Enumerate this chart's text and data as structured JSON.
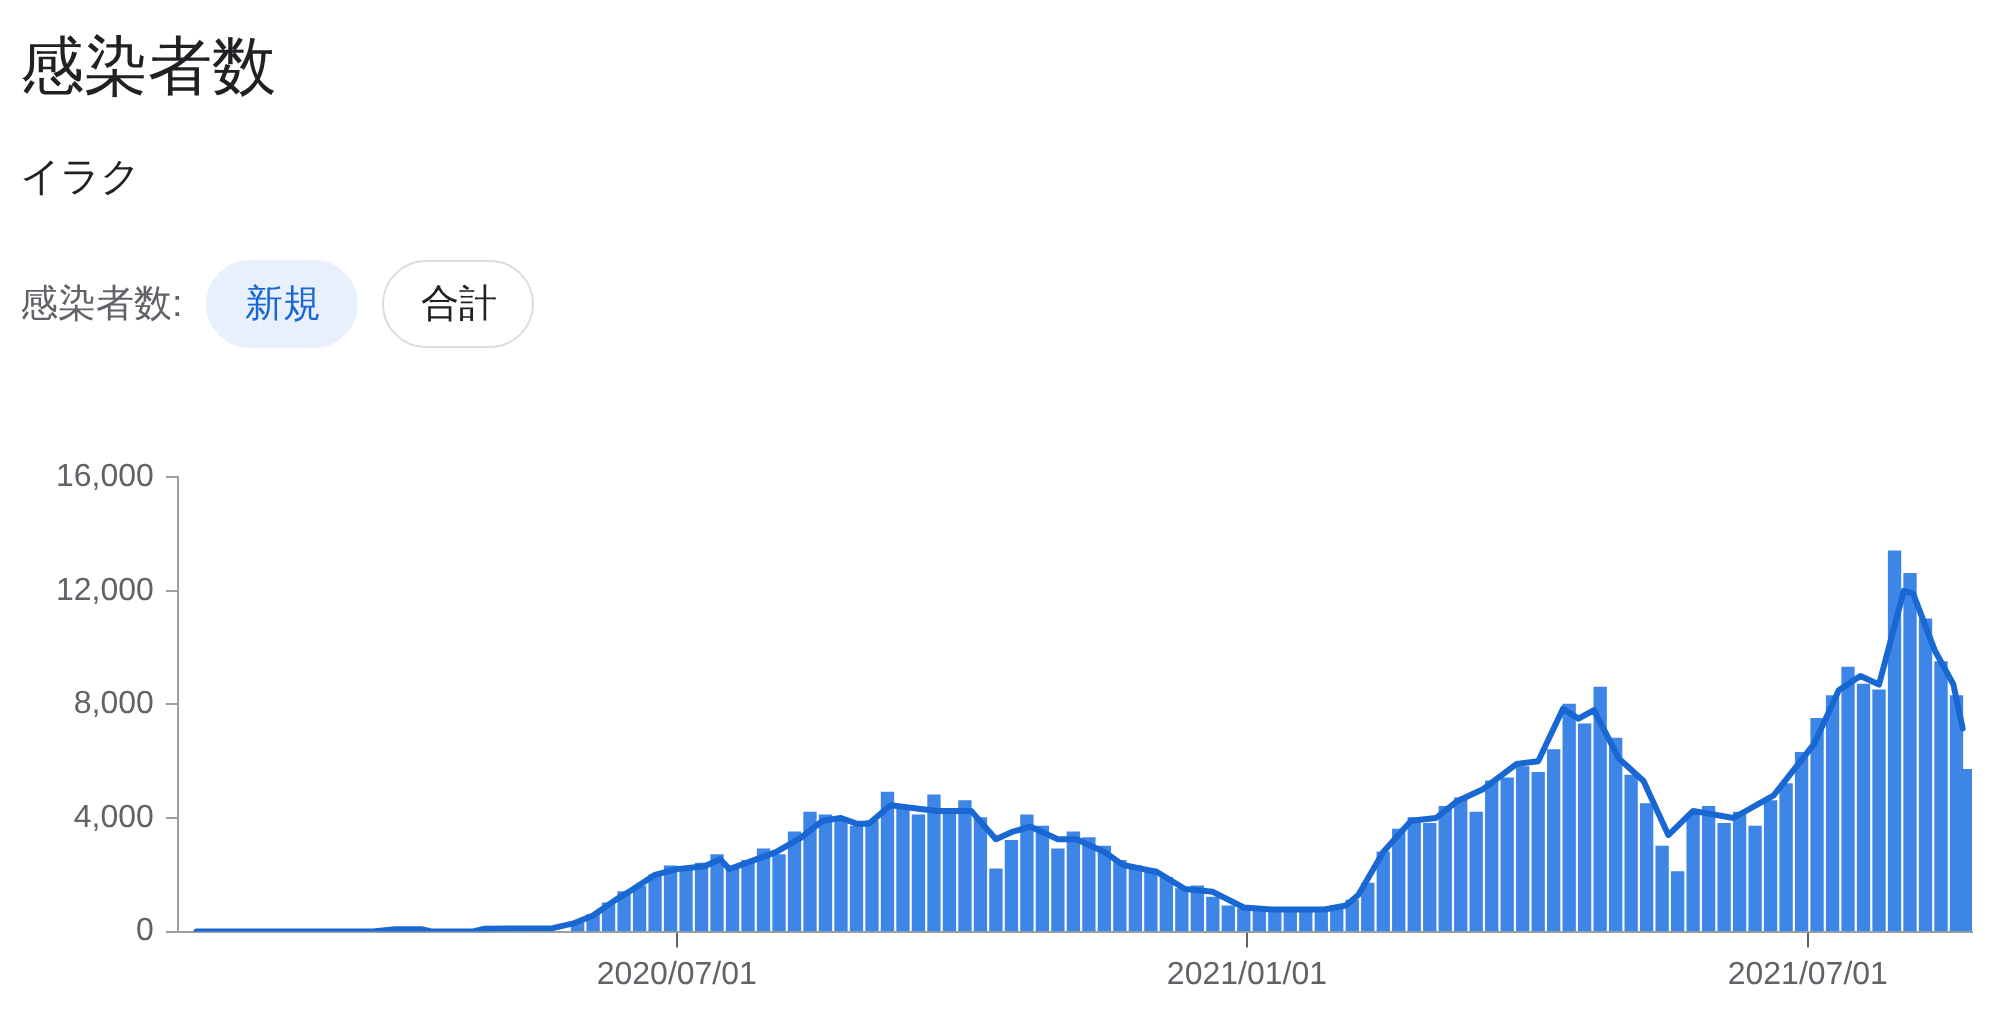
{
  "chart_data": {
    "type": "bar",
    "title": "感染者数",
    "subtitle": "イラク",
    "annotations": [
      "感染者数:",
      "新規",
      "合計"
    ],
    "xlim": [
      "2020-01-22",
      "2021-08-23"
    ],
    "xticks": [
      {
        "value": "2020-07-01",
        "label": "2020/07/01"
      },
      {
        "value": "2021-01-01",
        "label": "2021/01/01"
      },
      {
        "value": "2021-07-01",
        "label": "2021/07/01"
      }
    ],
    "ylim": [
      0,
      16000
    ],
    "yticks": [
      0,
      {
        "value": 4000,
        "label": "4,000"
      },
      {
        "value": 8000,
        "label": "8,000"
      },
      {
        "value": 12000,
        "label": "12,000"
      },
      {
        "value": 16000,
        "label": "16,000"
      }
    ],
    "series": [
      {
        "color": "#3d85e6",
        "x": [
          "2020-05-30",
          "2020-06-04",
          "2020-06-09",
          "2020-06-14",
          "2020-06-19",
          "2020-06-24",
          "2020-06-29",
          "2020-07-04",
          "2020-07-09",
          "2020-07-14",
          "2020-07-19",
          "2020-07-24",
          "2020-07-29",
          "2020-08-03",
          "2020-08-08",
          "2020-08-13",
          "2020-08-18",
          "2020-08-23",
          "2020-08-28",
          "2020-09-02",
          "2020-09-07",
          "2020-09-12",
          "2020-09-17",
          "2020-09-22",
          "2020-09-27",
          "2020-10-02",
          "2020-10-07",
          "2020-10-12",
          "2020-10-17",
          "2020-10-22",
          "2020-10-27",
          "2020-11-01",
          "2020-11-06",
          "2020-11-11",
          "2020-11-16",
          "2020-11-21",
          "2020-11-26",
          "2020-12-01",
          "2020-12-06",
          "2020-12-11",
          "2020-12-16",
          "2020-12-21",
          "2020-12-26",
          "2020-12-31",
          "2021-01-05",
          "2021-01-10",
          "2021-01-15",
          "2021-01-20",
          "2021-01-25",
          "2021-01-30",
          "2021-02-04",
          "2021-02-09",
          "2021-02-14",
          "2021-02-19",
          "2021-02-24",
          "2021-03-01",
          "2021-03-06",
          "2021-03-11",
          "2021-03-16",
          "2021-03-21",
          "2021-03-26",
          "2021-03-31",
          "2021-04-05",
          "2021-04-10",
          "2021-04-15",
          "2021-04-20",
          "2021-04-25",
          "2021-04-30",
          "2021-05-05",
          "2021-05-10",
          "2021-05-15",
          "2021-05-20",
          "2021-05-25",
          "2021-05-30",
          "2021-06-04",
          "2021-06-09",
          "2021-06-14",
          "2021-06-19",
          "2021-06-24",
          "2021-06-29",
          "2021-07-04",
          "2021-07-09",
          "2021-07-14",
          "2021-07-19",
          "2021-07-24",
          "2021-07-29",
          "2021-08-03",
          "2021-08-08",
          "2021-08-13",
          "2021-08-18",
          "2021-08-22"
        ],
        "values": [
          300,
          600,
          1000,
          1400,
          1600,
          2000,
          2300,
          2200,
          2400,
          2700,
          2200,
          2500,
          2900,
          2700,
          3500,
          4200,
          4100,
          4000,
          3700,
          3900,
          4900,
          4300,
          4100,
          4800,
          4300,
          4600,
          4000,
          2200,
          3200,
          4100,
          3700,
          2900,
          3500,
          3300,
          3000,
          2500,
          2300,
          2200,
          1900,
          1500,
          1600,
          1200,
          900,
          800,
          850,
          700,
          750,
          800,
          700,
          900,
          1100,
          1700,
          2800,
          3600,
          4000,
          3800,
          4400,
          4700,
          4200,
          5300,
          5400,
          5800,
          5600,
          6400,
          8000,
          7300,
          8600,
          6800,
          5500,
          4500,
          3000,
          2100,
          4100,
          4400,
          3800,
          4200,
          3700,
          4600,
          5200,
          6300,
          7500,
          8300,
          9300,
          8700,
          8500,
          13400,
          12600,
          11000,
          9500,
          8300,
          5700
        ]
      },
      {
        "type": "line",
        "color": "#1967d2",
        "x": [
          "2020-01-28",
          "2020-03-25",
          "2020-04-01",
          "2020-04-10",
          "2020-04-13",
          "2020-04-26",
          "2020-04-30",
          "2020-05-22",
          "2020-05-29",
          "2020-06-04",
          "2020-06-11",
          "2020-06-17",
          "2020-06-24",
          "2020-07-01",
          "2020-07-10",
          "2020-07-15",
          "2020-07-18",
          "2020-08-02",
          "2020-08-10",
          "2020-08-17",
          "2020-08-23",
          "2020-08-28",
          "2020-09-01",
          "2020-09-08",
          "2020-09-23",
          "2020-10-04",
          "2020-10-12",
          "2020-10-17",
          "2020-10-23",
          "2020-11-01",
          "2020-11-07",
          "2020-11-16",
          "2020-11-22",
          "2020-12-03",
          "2020-12-12",
          "2020-12-21",
          "2020-12-31",
          "2021-01-09",
          "2021-01-26",
          "2021-02-02",
          "2021-02-06",
          "2021-02-14",
          "2021-02-23",
          "2021-03-03",
          "2021-03-10",
          "2021-03-18",
          "2021-03-29",
          "2021-04-05",
          "2021-04-13",
          "2021-04-18",
          "2021-04-23",
          "2021-05-01",
          "2021-05-09",
          "2021-05-17",
          "2021-05-25",
          "2021-06-07",
          "2021-06-20",
          "2021-07-03",
          "2021-07-11",
          "2021-07-18",
          "2021-07-24",
          "2021-08-01",
          "2021-08-04",
          "2021-08-11",
          "2021-08-17",
          "2021-08-20"
        ],
        "values": [
          0,
          0,
          80,
          80,
          0,
          0,
          100,
          120,
          300,
          570,
          1100,
          1500,
          2000,
          2200,
          2300,
          2550,
          2200,
          2800,
          3300,
          3900,
          4000,
          3800,
          3800,
          4450,
          4250,
          4250,
          3250,
          3500,
          3700,
          3250,
          3250,
          2800,
          2350,
          2100,
          1500,
          1400,
          850,
          780,
          780,
          920,
          1300,
          2800,
          3900,
          4000,
          4600,
          5000,
          5900,
          6000,
          7850,
          7500,
          7800,
          6100,
          5300,
          3400,
          4250,
          4000,
          4800,
          6600,
          8500,
          9000,
          8700,
          12000,
          11900,
          9900,
          8700,
          7150
        ]
      }
    ]
  }
}
